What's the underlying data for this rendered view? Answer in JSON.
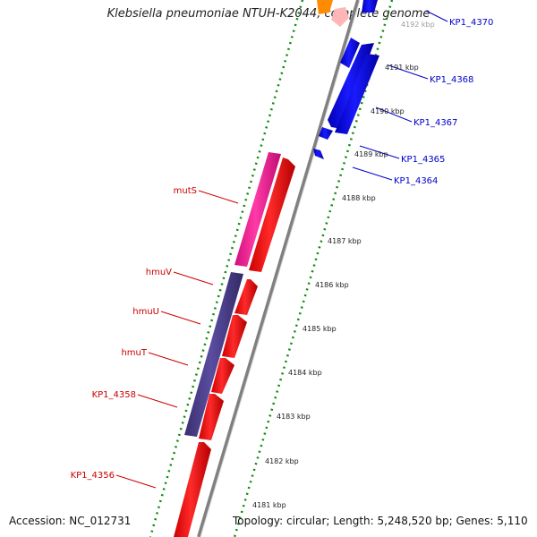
{
  "title": "Klebsiella pneumoniae NTUH-K2044, complete genome",
  "accession": "Accession: NC_012731",
  "topology": "Topology: circular; Length: 5,248,520 bp; Genes: 5,110",
  "colors": {
    "reverse_strand": "#ff0000",
    "forward_strand": "#0000ff",
    "magenta": "#ff1493",
    "purple": "#483d8b",
    "orange": "#ff8c00",
    "pink": "#ffb6b6",
    "backbone": "#808080",
    "dots": "#0a8a0a",
    "label_left": "#cc0000",
    "label_right": "#0000cc"
  },
  "ticks": [
    "4181 kbp",
    "4182 kbp",
    "4183 kbp",
    "4184 kbp",
    "4185 kbp",
    "4186 kbp",
    "4187 kbp",
    "4188 kbp",
    "4189 kbp",
    "4190 kbp",
    "4191 kbp",
    "4192 kbp"
  ],
  "left_labels": [
    {
      "name": "mutS"
    },
    {
      "name": "hmuV"
    },
    {
      "name": "hmuU"
    },
    {
      "name": "hmuT"
    },
    {
      "name": "KP1_4358"
    },
    {
      "name": "KP1_4356"
    }
  ],
  "right_labels": [
    {
      "name": "KP1_4370"
    },
    {
      "name": "KP1_4368"
    },
    {
      "name": "KP1_4367"
    },
    {
      "name": "KP1_4365"
    },
    {
      "name": "KP1_4364"
    }
  ]
}
